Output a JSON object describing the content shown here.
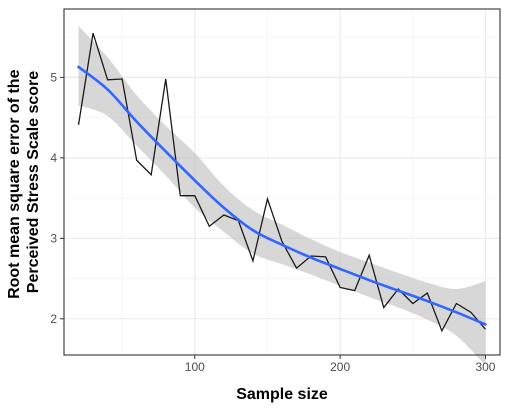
{
  "chart_data": {
    "type": "line",
    "title": "",
    "xlabel": "Sample size",
    "ylabel_lines": [
      "Root mean square error of the",
      "Perceived Stress Scale score"
    ],
    "xlim": [
      10,
      310
    ],
    "ylim": [
      1.55,
      5.85
    ],
    "x_ticks": [
      100,
      200,
      300
    ],
    "y_ticks": [
      2,
      3,
      4,
      5
    ],
    "grid": true,
    "series": [
      {
        "kind": "observed",
        "x": [
          20,
          30,
          40,
          50,
          60,
          70,
          80,
          90,
          100,
          110,
          120,
          130,
          140,
          150,
          160,
          170,
          180,
          190,
          200,
          210,
          220,
          230,
          240,
          250,
          260,
          270,
          280,
          290,
          300
        ],
        "y": [
          4.41,
          5.55,
          4.97,
          4.98,
          3.97,
          3.79,
          4.98,
          3.53,
          3.53,
          3.15,
          3.29,
          3.22,
          2.72,
          3.49,
          2.96,
          2.63,
          2.78,
          2.77,
          2.39,
          2.35,
          2.79,
          2.14,
          2.37,
          2.19,
          2.32,
          1.85,
          2.19,
          2.08,
          1.87
        ]
      },
      {
        "kind": "smooth",
        "x": [
          20,
          40,
          60,
          80,
          100,
          120,
          140,
          160,
          180,
          200,
          220,
          240,
          260,
          280,
          300
        ],
        "y": [
          5.13,
          4.85,
          4.45,
          4.08,
          3.72,
          3.38,
          3.1,
          2.92,
          2.76,
          2.62,
          2.48,
          2.35,
          2.22,
          2.08,
          1.93
        ],
        "lower": [
          4.65,
          4.52,
          4.15,
          3.78,
          3.38,
          3.08,
          2.81,
          2.68,
          2.55,
          2.41,
          2.27,
          2.14,
          1.99,
          1.79,
          1.42
        ],
        "upper": [
          5.64,
          5.25,
          4.78,
          4.4,
          4.06,
          3.65,
          3.35,
          3.17,
          2.99,
          2.83,
          2.7,
          2.57,
          2.45,
          2.37,
          2.47
        ]
      }
    ],
    "colors": {
      "panel_border": "#333333",
      "grid_major": "#ebebeb",
      "grid_minor": "#f4f4f4",
      "observed_line": "#1a1a1a",
      "smooth_line": "#3366ff",
      "ribbon": "#bdbdbd"
    }
  }
}
